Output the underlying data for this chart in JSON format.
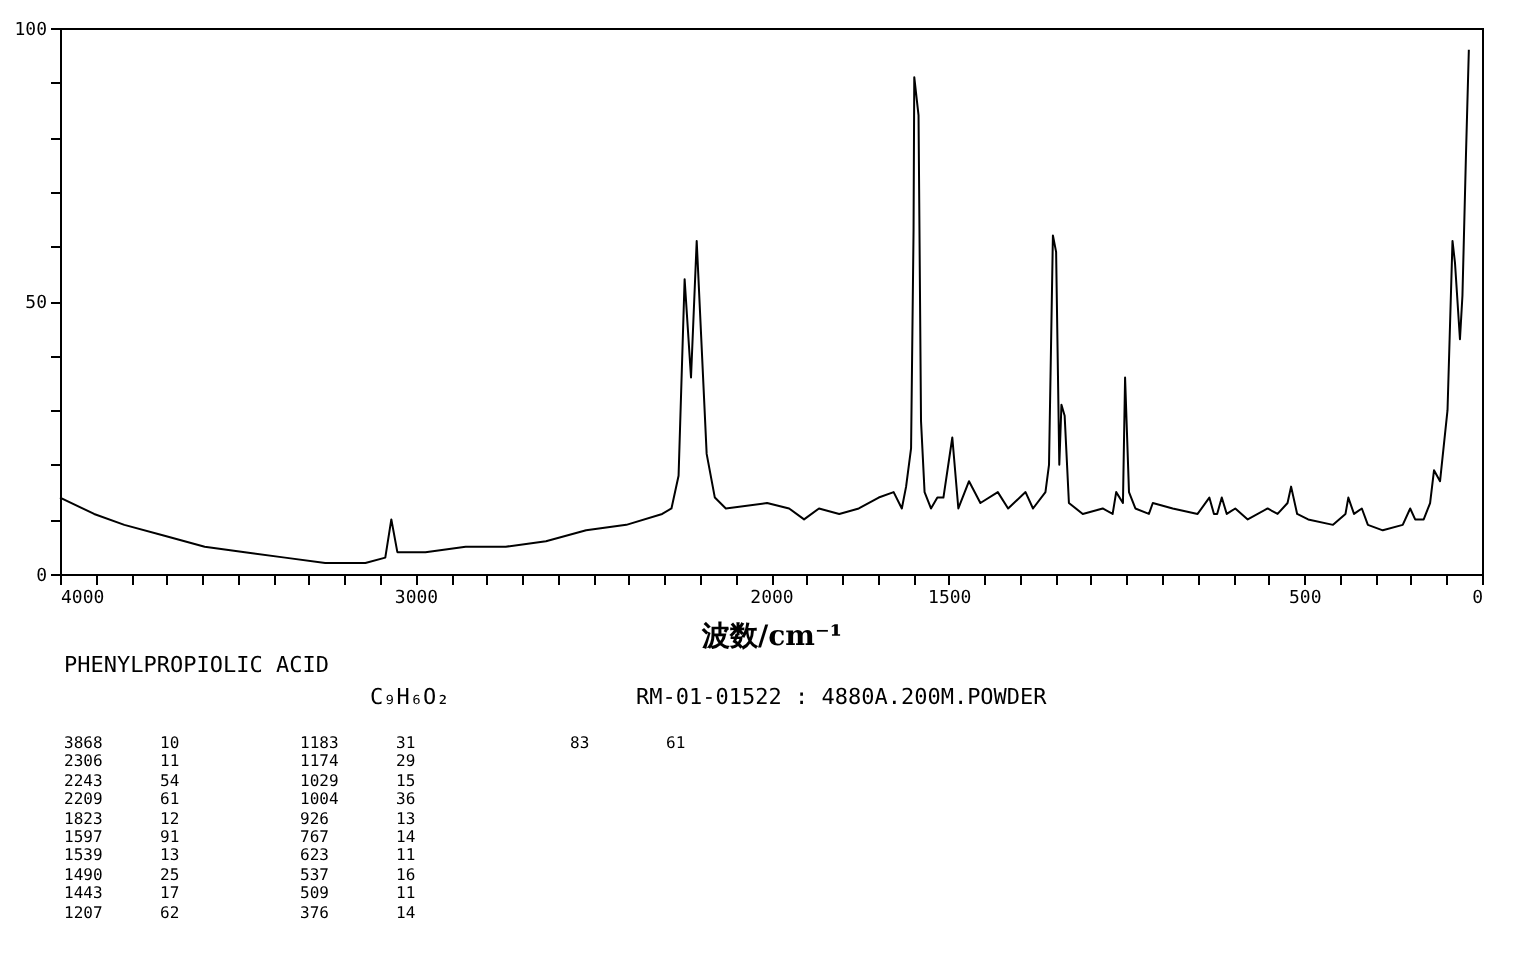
{
  "chart_data": {
    "type": "line",
    "xlabel": "波数/cm⁻¹",
    "xlim": [
      4000,
      0
    ],
    "ylim": [
      0,
      100
    ],
    "xticks": [
      4000,
      {
        "value": 3900,
        "label": null
      },
      {
        "value": 3800,
        "label": null
      },
      {
        "value": 3700,
        "label": null
      },
      {
        "value": 3600,
        "label": null
      },
      {
        "value": 3500,
        "label": null
      },
      {
        "value": 3400,
        "label": null
      },
      {
        "value": 3300,
        "label": null
      },
      {
        "value": 3200,
        "label": null
      },
      {
        "value": 3100,
        "label": null
      },
      3000,
      {
        "value": 2900,
        "label": null
      },
      {
        "value": 2800,
        "label": null
      },
      {
        "value": 2700,
        "label": null
      },
      {
        "value": 2600,
        "label": null
      },
      {
        "value": 2500,
        "label": null
      },
      {
        "value": 2400,
        "label": null
      },
      {
        "value": 2300,
        "label": null
      },
      {
        "value": 2200,
        "label": null
      },
      {
        "value": 2100,
        "label": null
      },
      2000,
      {
        "value": 1900,
        "label": null
      },
      {
        "value": 1800,
        "label": null
      },
      {
        "value": 1700,
        "label": null
      },
      {
        "value": 1600,
        "label": null
      },
      1500,
      {
        "value": 1400,
        "label": null
      },
      {
        "value": 1300,
        "label": null
      },
      {
        "value": 1200,
        "label": null
      },
      {
        "value": 1100,
        "label": null
      },
      {
        "value": 1000,
        "label": null
      },
      {
        "value": 900,
        "label": null
      },
      {
        "value": 800,
        "label": null
      },
      {
        "value": 700,
        "label": null
      },
      {
        "value": 600,
        "label": null
      },
      500,
      {
        "value": 400,
        "label": null
      },
      {
        "value": 300,
        "label": null
      },
      {
        "value": 200,
        "label": null
      },
      {
        "value": 100,
        "label": null
      },
      0
    ],
    "yticks": [
      0,
      {
        "value": 10,
        "label": null
      },
      {
        "value": 20,
        "label": null
      },
      {
        "value": 30,
        "label": null
      },
      {
        "value": 40,
        "label": null
      },
      50,
      {
        "value": 60,
        "label": null
      },
      {
        "value": 70,
        "label": null
      },
      {
        "value": 80,
        "label": null
      },
      {
        "value": 90,
        "label": null
      },
      100
    ],
    "grid": false,
    "marker": "none",
    "line_style": "solid",
    "series": [
      {
        "color": "#000000",
        "x": [
          4000,
          3904,
          3819,
          3706,
          3593,
          3480,
          3367,
          3254,
          3141,
          3085,
          3068,
          3051,
          2972,
          2859,
          2746,
          2633,
          2520,
          2407,
          2306,
          2280,
          2260,
          2243,
          2225,
          2209,
          2181,
          2158,
          2127,
          2011,
          1949,
          1907,
          1865,
          1808,
          1753,
          1697,
          1655,
          1632,
          1620,
          1606,
          1599,
          1597,
          1585,
          1578,
          1568,
          1550,
          1532,
          1515,
          1490,
          1473,
          1443,
          1411,
          1362,
          1333,
          1284,
          1263,
          1228,
          1218,
          1207,
          1198,
          1189,
          1183,
          1174,
          1162,
          1123,
          1067,
          1039,
          1029,
          1010,
          1004,
          993,
          975,
          937,
          926,
          870,
          800,
          767,
          754,
          745,
          732,
          718,
          694,
          659,
          603,
          575,
          547,
          537,
          520,
          489,
          419,
          384,
          376,
          360,
          338,
          321,
          279,
          223,
          202,
          188,
          164,
          146,
          135,
          118,
          97,
          83,
          76,
          62,
          55,
          45,
          37
        ],
        "values": [
          14,
          11,
          9,
          7,
          5,
          4,
          3,
          2,
          2,
          3,
          10,
          4,
          4,
          5,
          5,
          6,
          8,
          9,
          11,
          12,
          18,
          54,
          36,
          61,
          22,
          14,
          12,
          13,
          12,
          10,
          12,
          11,
          12,
          14,
          15,
          12,
          16,
          23,
          63,
          91,
          84,
          28,
          15,
          12,
          14,
          14,
          25,
          12,
          17,
          13,
          15,
          12,
          15,
          12,
          15,
          20,
          62,
          59,
          20,
          31,
          29,
          13,
          11,
          12,
          11,
          15,
          13,
          36,
          15,
          12,
          11,
          13,
          12,
          11,
          14,
          11,
          11,
          14,
          11,
          12,
          10,
          12,
          11,
          13,
          16,
          11,
          10,
          9,
          11,
          14,
          11,
          12,
          9,
          8,
          9,
          12,
          10,
          10,
          13,
          19,
          17,
          30,
          61,
          57,
          43,
          51,
          77,
          96
        ]
      }
    ],
    "annotations": [
      "PHENYLPROPIOLIC ACID",
      "C₉H₆O₂",
      "RM-01-01522 : 4880A.200M.POWDER",
      "3868 10",
      "2306 11",
      "2243 54",
      "2209 61",
      "1823 12",
      "1597 91",
      "1539 13",
      "1490 25",
      "1443 17",
      "1207 62",
      "1183 31",
      "1174 29",
      "1029 15",
      "1004 36",
      "926 13",
      "767 14",
      "623 11",
      "537 16",
      "509 11",
      "376 14",
      "83 61"
    ]
  }
}
